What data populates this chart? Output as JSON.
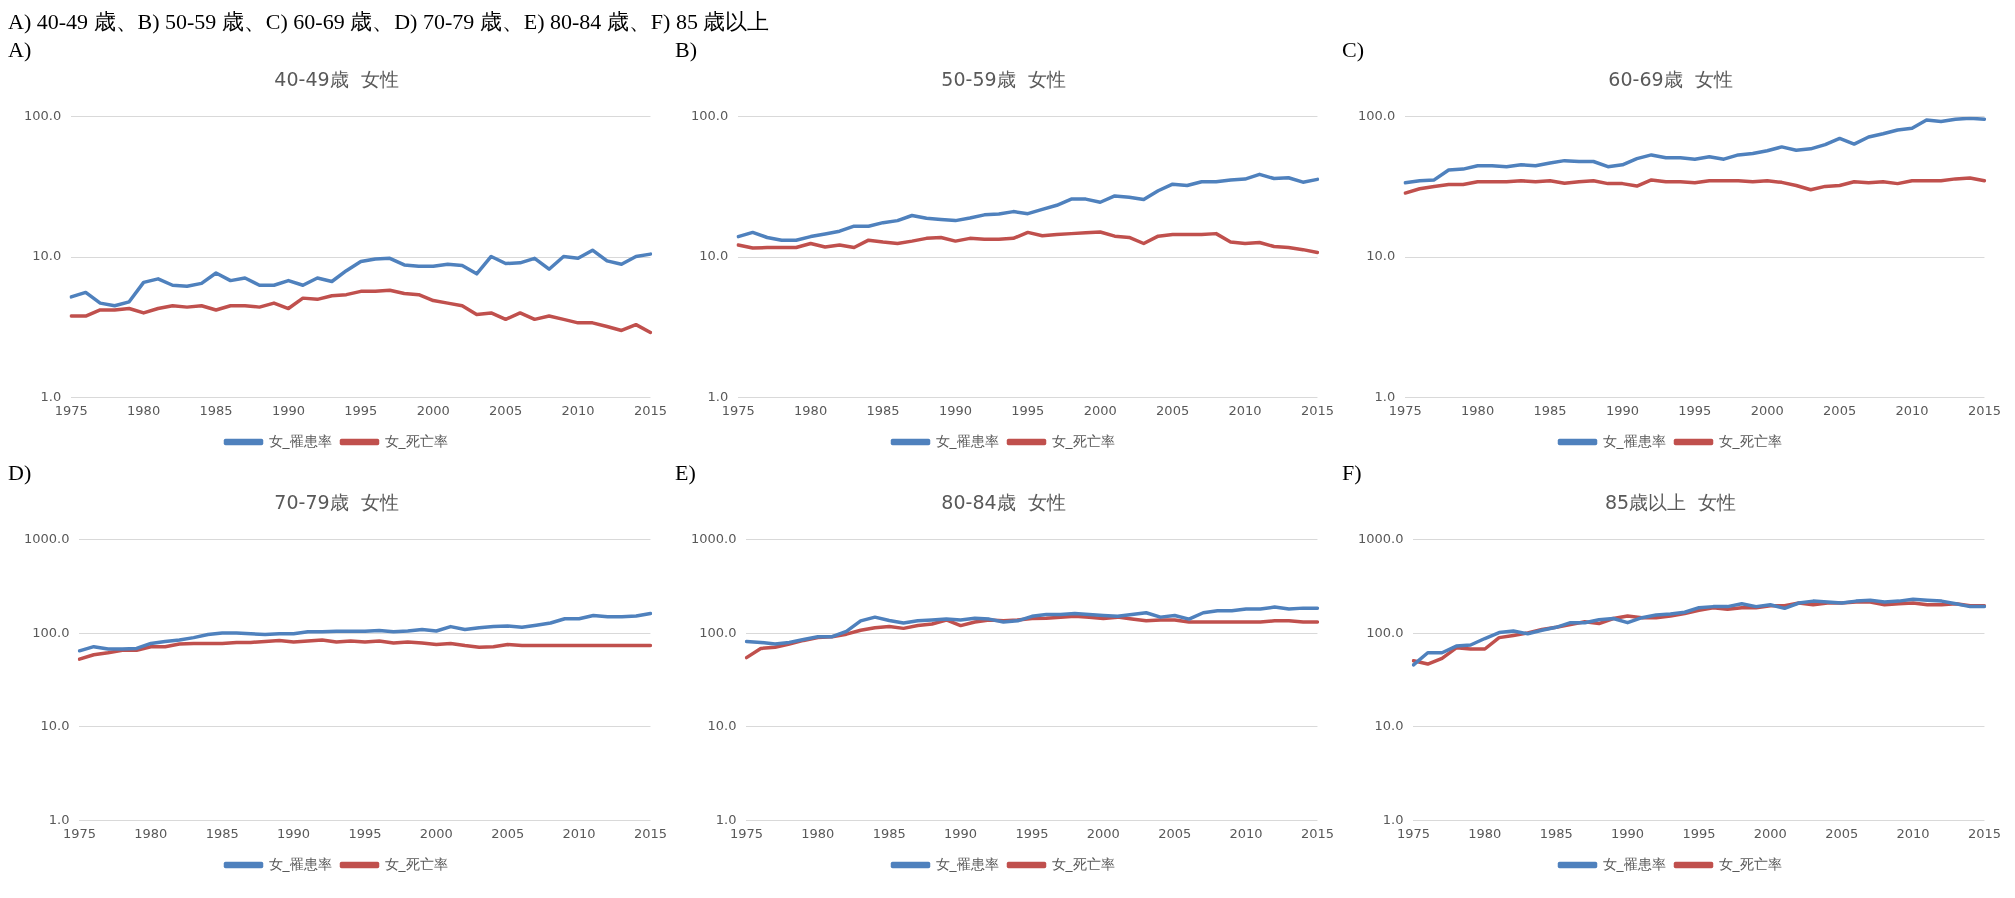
{
  "chart_data": [
    {
      "type": "line",
      "title": "40-49歳  女性",
      "annotations": [
        "A) 40-49 歳、B) 50-59 歳、C) 60-69 歳、D) 70-79 歳、E) 80-84 歳、F) 85 歳以上",
        "A)"
      ],
      "categories": [
        "1975",
        null,
        null,
        null,
        null,
        "1980",
        null,
        null,
        null,
        null,
        "1985",
        null,
        null,
        null,
        null,
        "1990",
        null,
        null,
        null,
        null,
        "1995",
        null,
        null,
        null,
        null,
        "2000",
        null,
        null,
        null,
        null,
        "2005",
        null,
        null,
        null,
        null,
        "2010",
        null,
        null,
        null,
        null,
        "2015"
      ],
      "series": [
        {
          "name": "女_罹患率",
          "color": "#4f81bd",
          "values": [
            5.2,
            5.6,
            4.7,
            4.5,
            4.8,
            6.6,
            7.0,
            6.3,
            6.2,
            6.5,
            7.7,
            6.8,
            7.1,
            6.3,
            6.3,
            6.8,
            6.3,
            7.1,
            6.7,
            8.0,
            9.3,
            9.7,
            9.8,
            8.8,
            8.6,
            8.6,
            8.9,
            8.7,
            7.6,
            10.1,
            9.0,
            9.1,
            9.8,
            8.2,
            10.1,
            9.8,
            11.2,
            9.4,
            8.9,
            10.1,
            10.5
          ]
        },
        {
          "name": "女_死亡率",
          "color": "#c0504d",
          "values": [
            3.8,
            3.8,
            4.2,
            4.2,
            4.3,
            4.0,
            4.3,
            4.5,
            4.4,
            4.5,
            4.2,
            4.5,
            4.5,
            4.4,
            4.7,
            4.3,
            5.1,
            5.0,
            5.3,
            5.4,
            5.7,
            5.7,
            5.8,
            5.5,
            5.4,
            4.9,
            4.7,
            4.5,
            3.9,
            4.0,
            3.6,
            4.0,
            3.6,
            3.8,
            3.6,
            3.4,
            3.4,
            3.2,
            3.0,
            3.3,
            2.9
          ]
        }
      ],
      "log": true,
      "ylim": [
        1,
        100
      ],
      "yticks": [
        {
          "value": 1,
          "label": "1.0"
        },
        {
          "value": 10,
          "label": "10.0"
        },
        {
          "value": 100,
          "label": "100.0"
        }
      ],
      "grid": "y",
      "legend": "bottom"
    },
    {
      "type": "line",
      "title": "50-59歳  女性",
      "annotations": [
        "B)"
      ],
      "categories": [
        "1975",
        null,
        null,
        null,
        null,
        "1980",
        null,
        null,
        null,
        null,
        "1985",
        null,
        null,
        null,
        null,
        "1990",
        null,
        null,
        null,
        null,
        "1995",
        null,
        null,
        null,
        null,
        "2000",
        null,
        null,
        null,
        null,
        "2005",
        null,
        null,
        null,
        null,
        "2010",
        null,
        null,
        null,
        null,
        "2015"
      ],
      "series": [
        {
          "name": "女_罹患率",
          "color": "#4f81bd",
          "values": [
            14.0,
            15.0,
            13.8,
            13.2,
            13.2,
            14.0,
            14.6,
            15.3,
            16.6,
            16.6,
            17.6,
            18.2,
            19.8,
            18.9,
            18.5,
            18.2,
            19.0,
            20.0,
            20.3,
            21.1,
            20.4,
            21.9,
            23.4,
            25.9,
            25.9,
            24.6,
            27.3,
            26.7,
            25.7,
            29.7,
            33.1,
            32.4,
            34.4,
            34.4,
            35.5,
            36.0,
            38.9,
            36.3,
            36.8,
            34.2,
            35.8
          ]
        },
        {
          "name": "女_死亡率",
          "color": "#c0504d",
          "values": [
            12.2,
            11.6,
            11.7,
            11.7,
            11.7,
            12.5,
            11.8,
            12.2,
            11.7,
            13.2,
            12.8,
            12.5,
            13.0,
            13.6,
            13.8,
            13.0,
            13.6,
            13.4,
            13.4,
            13.6,
            15.0,
            14.2,
            14.5,
            14.7,
            14.9,
            15.1,
            14.1,
            13.8,
            12.5,
            14.1,
            14.5,
            14.5,
            14.5,
            14.7,
            12.8,
            12.5,
            12.7,
            11.9,
            11.7,
            11.3,
            10.8
          ]
        }
      ],
      "log": true,
      "ylim": [
        1,
        100
      ],
      "yticks": [
        {
          "value": 1,
          "label": "1.0"
        },
        {
          "value": 10,
          "label": "10.0"
        },
        {
          "value": 100,
          "label": "100.0"
        }
      ],
      "grid": "y",
      "legend": "bottom"
    },
    {
      "type": "line",
      "title": "60-69歳  女性",
      "annotations": [
        "C)"
      ],
      "categories": [
        "1975",
        null,
        null,
        null,
        null,
        "1980",
        null,
        null,
        null,
        null,
        "1985",
        null,
        null,
        null,
        null,
        "1990",
        null,
        null,
        null,
        null,
        "1995",
        null,
        null,
        null,
        null,
        "2000",
        null,
        null,
        null,
        null,
        "2005",
        null,
        null,
        null,
        null,
        "2010",
        null,
        null,
        null,
        null,
        "2015"
      ],
      "series": [
        {
          "name": "女_罹患率",
          "color": "#4f81bd",
          "values": [
            33.9,
            35.0,
            35.5,
            41.8,
            42.4,
            44.8,
            44.8,
            44.1,
            45.5,
            44.8,
            46.9,
            48.7,
            48.0,
            48.0,
            44.1,
            45.5,
            50.3,
            53.5,
            51.1,
            51.1,
            49.9,
            51.9,
            49.9,
            53.5,
            54.7,
            57.3,
            61.0,
            57.8,
            59.1,
            63.4,
            70.1,
            63.9,
            71.8,
            75.7,
            80.5,
            83.0,
            94.8,
            92.5,
            96.2,
            97.7,
            96.2
          ]
        },
        {
          "name": "女_死亡率",
          "color": "#c0504d",
          "values": [
            28.6,
            30.7,
            31.9,
            32.9,
            32.9,
            34.4,
            34.4,
            34.4,
            35.0,
            34.4,
            35.0,
            33.6,
            34.4,
            35.0,
            33.4,
            33.4,
            32.1,
            35.5,
            34.4,
            34.4,
            33.9,
            35.0,
            35.0,
            35.0,
            34.4,
            35.0,
            34.1,
            32.4,
            30.2,
            31.9,
            32.4,
            34.4,
            33.9,
            34.4,
            33.4,
            35.0,
            35.0,
            35.0,
            36.1,
            36.6,
            35.0
          ]
        }
      ],
      "log": true,
      "ylim": [
        1,
        100
      ],
      "yticks": [
        {
          "value": 1,
          "label": "1.0"
        },
        {
          "value": 10,
          "label": "10.0"
        },
        {
          "value": 100,
          "label": "100.0"
        }
      ],
      "grid": "y",
      "legend": "bottom"
    },
    {
      "type": "line",
      "title": "70-79歳  女性",
      "annotations": [
        "D)"
      ],
      "categories": [
        "1975",
        null,
        null,
        null,
        null,
        "1980",
        null,
        null,
        null,
        null,
        "1985",
        null,
        null,
        null,
        null,
        "1990",
        null,
        null,
        null,
        null,
        "1995",
        null,
        null,
        null,
        null,
        "2000",
        null,
        null,
        null,
        null,
        "2005",
        null,
        null,
        null,
        null,
        "2010",
        null,
        null,
        null,
        null,
        "2015"
      ],
      "series": [
        {
          "name": "女_罹患率",
          "color": "#4f81bd",
          "values": [
            65,
            72,
            68,
            68,
            69,
            78,
            82,
            85,
            90,
            97,
            101,
            101,
            99,
            97,
            99,
            99,
            104,
            104,
            105,
            105,
            105,
            107,
            104,
            106,
            110,
            106,
            118,
            110,
            115,
            118,
            120,
            116,
            122,
            129,
            143,
            143,
            155,
            150,
            150,
            153,
            163
          ]
        },
        {
          "name": "女_死亡率",
          "color": "#c0504d",
          "values": [
            53,
            59,
            62,
            66,
            66,
            72,
            72,
            77,
            78,
            78,
            78,
            80,
            80,
            82,
            84,
            81,
            83,
            85,
            81,
            83,
            81,
            83,
            79,
            81,
            79,
            76,
            78,
            74,
            71,
            72,
            76,
            74,
            74,
            74,
            74,
            74,
            74,
            74,
            74,
            74,
            74
          ]
        }
      ],
      "log": true,
      "ylim": [
        1,
        1000
      ],
      "yticks": [
        {
          "value": 1,
          "label": "1.0"
        },
        {
          "value": 10,
          "label": "10.0"
        },
        {
          "value": 100,
          "label": "100.0"
        },
        {
          "value": 1000,
          "label": "1000.0"
        }
      ],
      "grid": "y",
      "legend": "bottom"
    },
    {
      "type": "line",
      "title": "80-84歳  女性",
      "annotations": [
        "E)"
      ],
      "categories": [
        "1975",
        null,
        null,
        null,
        null,
        "1980",
        null,
        null,
        null,
        null,
        "1985",
        null,
        null,
        null,
        null,
        "1990",
        null,
        null,
        null,
        null,
        "1995",
        null,
        null,
        null,
        null,
        "2000",
        null,
        null,
        null,
        null,
        "2005",
        null,
        null,
        null,
        null,
        "2010",
        null,
        null,
        null,
        null,
        "2015"
      ],
      "series": [
        {
          "name": "女_罹患率",
          "color": "#4f81bd",
          "values": [
            82,
            80,
            77,
            80,
            86,
            92,
            92,
            105,
            136,
            149,
            137,
            129,
            136,
            139,
            142,
            139,
            145,
            142,
            132,
            136,
            152,
            159,
            159,
            163,
            159,
            155,
            152,
            159,
            166,
            149,
            155,
            142,
            166,
            174,
            174,
            182,
            182,
            191,
            182,
            186,
            186
          ]
        },
        {
          "name": "女_死亡率",
          "color": "#c0504d",
          "values": [
            55,
            69,
            71,
            77,
            84,
            90,
            92,
            98,
            108,
            115,
            118,
            113,
            121,
            126,
            139,
            121,
            132,
            139,
            136,
            139,
            144,
            145,
            149,
            152,
            149,
            144,
            149,
            142,
            136,
            139,
            139,
            132,
            132,
            132,
            132,
            132,
            132,
            136,
            136,
            132,
            132
          ]
        }
      ],
      "log": true,
      "ylim": [
        1,
        1000
      ],
      "yticks": [
        {
          "value": 1,
          "label": "1.0"
        },
        {
          "value": 10,
          "label": "10.0"
        },
        {
          "value": 100,
          "label": "100.0"
        },
        {
          "value": 1000,
          "label": "1000.0"
        }
      ],
      "grid": "y",
      "legend": "bottom"
    },
    {
      "type": "line",
      "title": "85歳以上  女性",
      "annotations": [
        "F)"
      ],
      "categories": [
        "1975",
        null,
        null,
        null,
        null,
        "1980",
        null,
        null,
        null,
        null,
        "1985",
        null,
        null,
        null,
        null,
        "1990",
        null,
        null,
        null,
        null,
        "1995",
        null,
        null,
        null,
        null,
        "2000",
        null,
        null,
        null,
        null,
        "2005",
        null,
        null,
        null,
        null,
        "2010",
        null,
        null,
        null,
        null,
        "2015"
      ],
      "series": [
        {
          "name": "女_罹患率",
          "color": "#4f81bd",
          "values": [
            46,
            62,
            62,
            73,
            75,
            88,
            102,
            106,
            99,
            108,
            116,
            130,
            130,
            140,
            144,
            130,
            147,
            157,
            161,
            168,
            188,
            193,
            193,
            207,
            193,
            202,
            185,
            211,
            221,
            216,
            211,
            221,
            226,
            216,
            221,
            232,
            226,
            221,
            207,
            193,
            193
          ]
        },
        {
          "name": "女_死亡率",
          "color": "#c0504d",
          "values": [
            51,
            47,
            54,
            70,
            68,
            68,
            90,
            95,
            101,
            110,
            116,
            124,
            133,
            127,
            144,
            153,
            147,
            147,
            153,
            163,
            176,
            188,
            181,
            188,
            188,
            197,
            197,
            211,
            202,
            211,
            211,
            216,
            216,
            202,
            207,
            211,
            202,
            202,
            207,
            197,
            197
          ]
        }
      ],
      "log": true,
      "ylim": [
        1,
        1000
      ],
      "yticks": [
        {
          "value": 1,
          "label": "1.0"
        },
        {
          "value": 10,
          "label": "10.0"
        },
        {
          "value": 100,
          "label": "100.0"
        },
        {
          "value": 1000,
          "label": "1000.0"
        }
      ],
      "grid": "y",
      "legend": "bottom"
    }
  ]
}
